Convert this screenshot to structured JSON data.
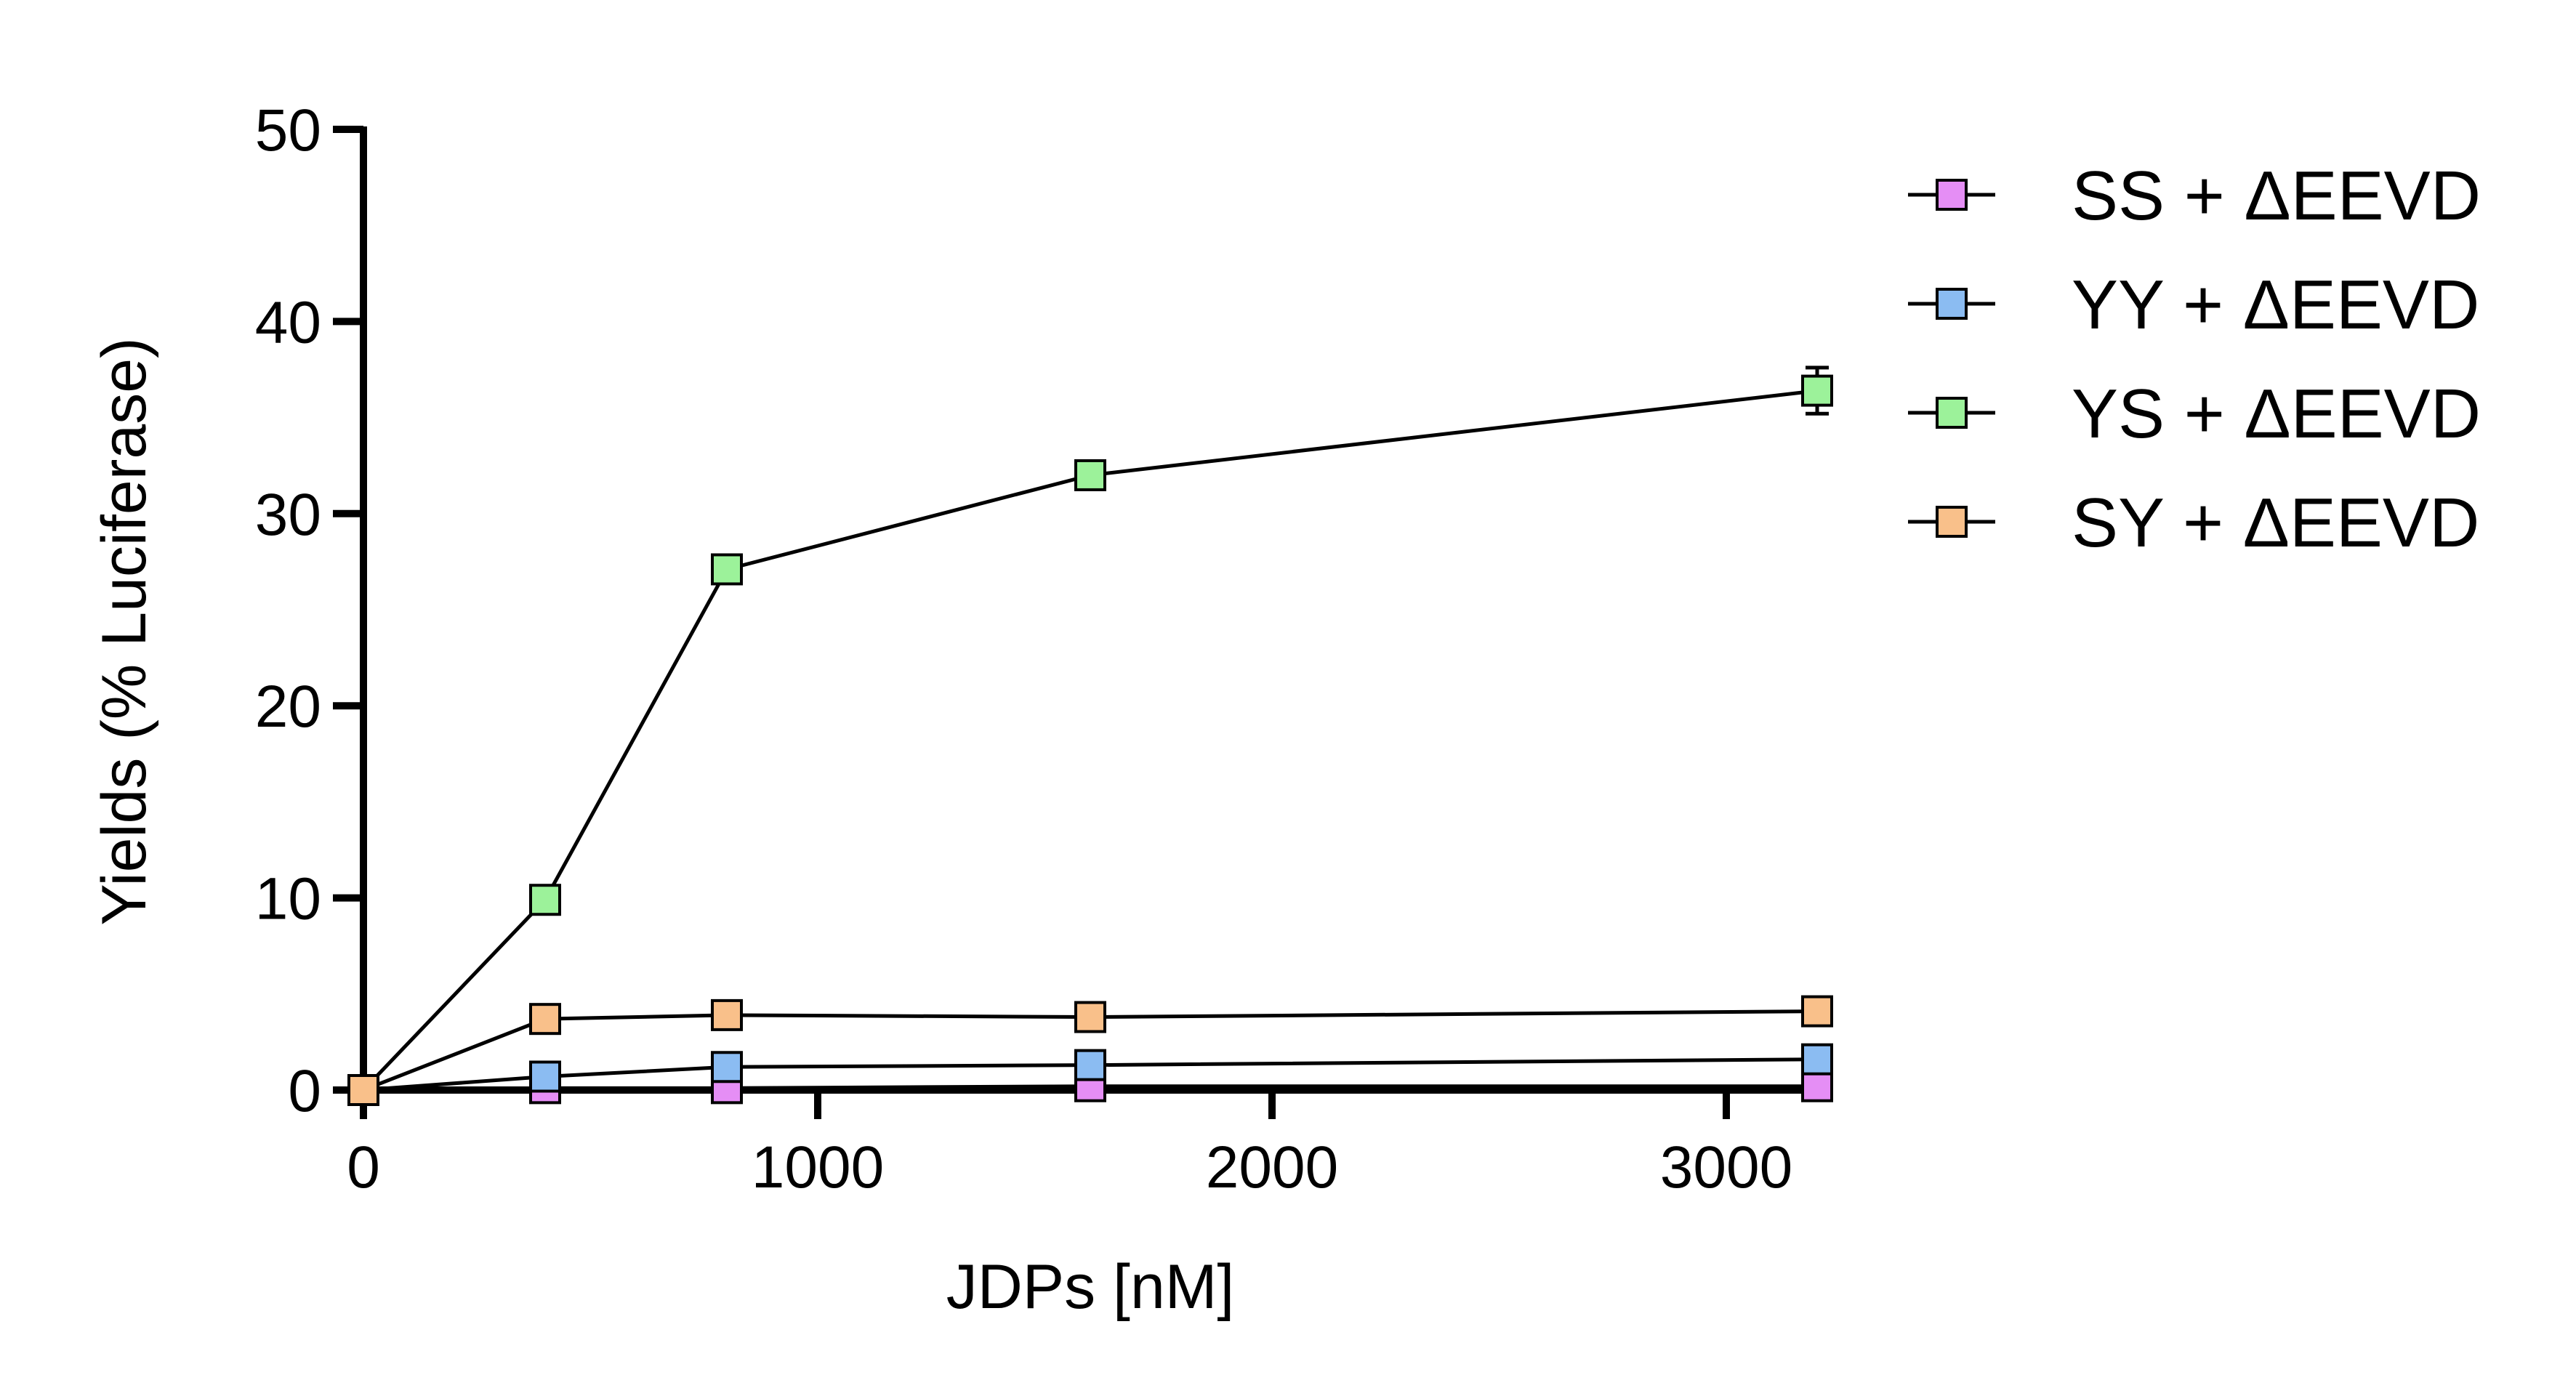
{
  "chart_data": {
    "type": "line",
    "title": "",
    "xlabel": "JDPs [nM]",
    "ylabel": "Yields (% Luciferase)",
    "xlim": [
      0,
      3200
    ],
    "ylim": [
      0,
      50
    ],
    "xticks": [
      "0",
      "1000",
      "2000",
      "3000"
    ],
    "yticks": [
      "0",
      "10",
      "20",
      "30",
      "40",
      "50"
    ],
    "grid": false,
    "legend_position": "right",
    "series": [
      {
        "name": "SS + ΔEEVD",
        "color": "#e58ef5",
        "x": [
          0,
          400,
          800,
          1600,
          3200
        ],
        "y": [
          0,
          0.1,
          0.1,
          0.2,
          0.2
        ],
        "error": [
          0,
          0,
          0,
          0,
          0
        ]
      },
      {
        "name": "YY + ΔEEVD",
        "color": "#8bbcf2",
        "x": [
          0,
          400,
          800,
          1600,
          3200
        ],
        "y": [
          0,
          0.7,
          1.2,
          1.3,
          1.6
        ],
        "error": [
          0,
          0,
          0,
          0,
          0
        ]
      },
      {
        "name": "YS + ΔEEVD",
        "color": "#9cf29a",
        "x": [
          0,
          400,
          800,
          1600,
          3200
        ],
        "y": [
          0,
          9.9,
          27.1,
          32.0,
          36.4
        ],
        "error": [
          0,
          0.3,
          0.6,
          0.7,
          1.2
        ]
      },
      {
        "name": "SY + ΔEEVD",
        "color": "#f9c08a",
        "x": [
          0,
          400,
          800,
          1600,
          3200
        ],
        "y": [
          0,
          3.7,
          3.9,
          3.8,
          4.1
        ],
        "error": [
          0,
          0,
          0,
          0,
          0
        ]
      }
    ]
  }
}
